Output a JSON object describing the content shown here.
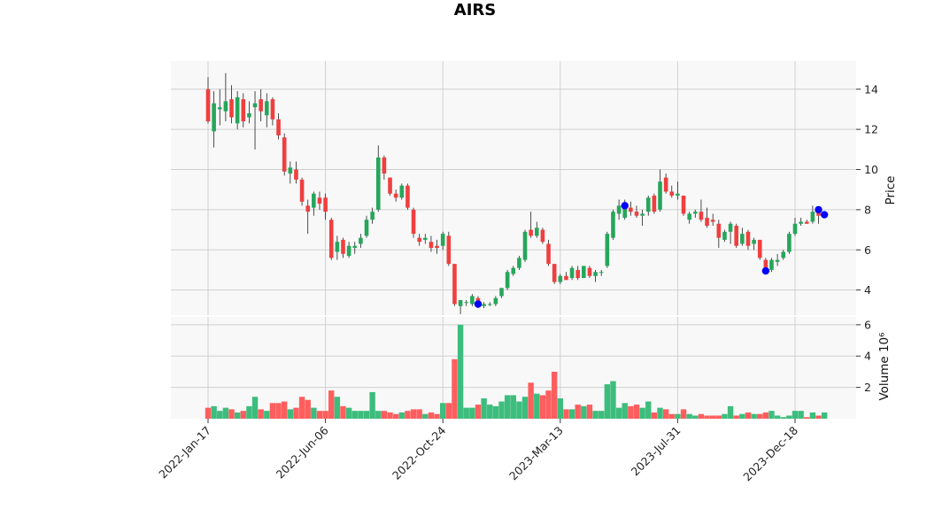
{
  "chart_data": {
    "type": "candlestick",
    "title": "AIRS",
    "colors": {
      "up": "#26a65b",
      "down": "#ef3f3f",
      "up_volume": "#3dbd7d",
      "down_volume": "#ff5e5e",
      "marker": "#0000ff",
      "panel_bg": "#f8f8f8",
      "grid": "#d0d0d0"
    },
    "x_tick_labels": [
      "2022-Jan-17",
      "2022-Jun-06",
      "2022-Oct-24",
      "2023-Mar-13",
      "2023-Jul-31",
      "2023-Dec-18"
    ],
    "x_tick_indices": [
      0,
      20,
      40,
      60,
      80,
      100
    ],
    "price_panel": {
      "ylabel": "Price",
      "ylim": [
        2.75,
        15.4
      ],
      "yticks": [
        4,
        6,
        8,
        10,
        12,
        14
      ],
      "grid": true,
      "candles": [
        [
          14.0,
          14.6,
          12.3,
          12.4
        ],
        [
          11.9,
          13.9,
          11.1,
          13.3
        ],
        [
          13.0,
          14.0,
          12.2,
          13.1
        ],
        [
          12.9,
          14.8,
          12.4,
          13.4
        ],
        [
          13.5,
          14.2,
          12.3,
          12.6
        ],
        [
          12.3,
          13.9,
          12.0,
          13.6
        ],
        [
          13.5,
          13.8,
          12.1,
          12.4
        ],
        [
          12.6,
          13.4,
          12.3,
          12.8
        ],
        [
          13.1,
          13.9,
          11.0,
          13.3
        ],
        [
          13.5,
          14.0,
          12.4,
          12.9
        ],
        [
          12.7,
          13.8,
          12.1,
          13.4
        ],
        [
          13.5,
          13.6,
          12.2,
          12.5
        ],
        [
          12.5,
          12.8,
          11.5,
          11.7
        ],
        [
          11.6,
          11.8,
          9.7,
          9.9
        ],
        [
          9.8,
          10.4,
          9.3,
          10.1
        ],
        [
          10.0,
          10.4,
          9.3,
          9.5
        ],
        [
          9.5,
          9.6,
          8.2,
          8.4
        ],
        [
          8.2,
          8.5,
          6.8,
          7.9
        ],
        [
          8.1,
          8.9,
          7.7,
          8.8
        ],
        [
          8.6,
          8.9,
          8.0,
          8.3
        ],
        [
          8.6,
          8.8,
          7.5,
          7.9
        ],
        [
          7.5,
          7.6,
          5.5,
          5.6
        ],
        [
          5.9,
          6.7,
          5.5,
          6.4
        ],
        [
          6.5,
          6.6,
          5.6,
          5.8
        ],
        [
          5.7,
          6.4,
          5.6,
          6.2
        ],
        [
          6.1,
          6.4,
          5.8,
          6.2
        ],
        [
          6.3,
          6.8,
          6.1,
          6.6
        ],
        [
          6.7,
          7.7,
          6.6,
          7.5
        ],
        [
          7.5,
          8.1,
          7.3,
          7.9
        ],
        [
          8.0,
          11.2,
          7.9,
          10.6
        ],
        [
          10.6,
          10.7,
          9.5,
          9.8
        ],
        [
          9.6,
          9.6,
          8.7,
          8.8
        ],
        [
          8.8,
          9.0,
          8.4,
          8.6
        ],
        [
          8.6,
          9.3,
          8.5,
          9.2
        ],
        [
          9.2,
          9.3,
          8.0,
          8.1
        ],
        [
          8.0,
          8.1,
          6.6,
          6.8
        ],
        [
          6.6,
          6.8,
          6.2,
          6.4
        ],
        [
          6.5,
          6.8,
          6.3,
          6.6
        ],
        [
          6.4,
          6.7,
          5.9,
          6.1
        ],
        [
          6.2,
          6.5,
          5.8,
          6.1
        ],
        [
          6.2,
          6.9,
          6.0,
          6.8
        ],
        [
          6.7,
          6.9,
          5.2,
          5.3
        ],
        [
          5.3,
          5.3,
          3.2,
          3.3
        ],
        [
          3.2,
          3.5,
          2.8,
          3.5
        ],
        [
          3.4,
          3.5,
          3.2,
          3.4
        ],
        [
          3.3,
          3.8,
          3.2,
          3.7
        ],
        [
          3.6,
          3.7,
          3.1,
          3.2
        ],
        [
          3.2,
          3.4,
          3.1,
          3.3
        ],
        [
          3.3,
          3.4,
          3.2,
          3.3
        ],
        [
          3.3,
          3.7,
          3.2,
          3.6
        ],
        [
          3.7,
          4.1,
          3.6,
          4.1
        ],
        [
          4.1,
          5.0,
          4.0,
          4.9
        ],
        [
          4.8,
          5.2,
          4.7,
          5.1
        ],
        [
          5.1,
          5.7,
          5.0,
          5.6
        ],
        [
          5.5,
          7.0,
          5.4,
          6.9
        ],
        [
          7.0,
          7.9,
          6.6,
          6.7
        ],
        [
          6.7,
          7.4,
          6.6,
          7.1
        ],
        [
          7.0,
          7.1,
          6.3,
          6.4
        ],
        [
          6.3,
          6.5,
          5.2,
          5.3
        ],
        [
          5.3,
          5.3,
          4.3,
          4.4
        ],
        [
          4.4,
          4.8,
          4.3,
          4.7
        ],
        [
          4.7,
          4.9,
          4.5,
          4.5
        ],
        [
          4.6,
          5.2,
          4.5,
          5.1
        ],
        [
          5.0,
          5.2,
          4.5,
          4.6
        ],
        [
          4.6,
          5.2,
          4.6,
          5.2
        ],
        [
          5.1,
          5.2,
          4.6,
          4.7
        ],
        [
          4.7,
          5.0,
          4.4,
          4.9
        ],
        [
          4.9,
          5.0,
          4.7,
          4.9
        ],
        [
          5.2,
          6.9,
          5.1,
          6.8
        ],
        [
          6.6,
          8.0,
          6.5,
          7.9
        ],
        [
          7.8,
          8.5,
          7.5,
          8.2
        ],
        [
          7.6,
          8.5,
          7.5,
          8.2
        ],
        [
          8.1,
          8.4,
          7.7,
          7.9
        ],
        [
          7.9,
          8.2,
          7.6,
          7.7
        ],
        [
          7.7,
          8.0,
          7.2,
          7.8
        ],
        [
          7.9,
          8.7,
          7.7,
          8.6
        ],
        [
          8.7,
          8.8,
          7.8,
          7.9
        ],
        [
          8.0,
          10.0,
          7.9,
          9.4
        ],
        [
          9.6,
          9.8,
          8.8,
          8.9
        ],
        [
          8.9,
          9.2,
          8.6,
          8.7
        ],
        [
          8.7,
          9.4,
          8.5,
          8.8
        ],
        [
          8.7,
          8.7,
          7.7,
          7.8
        ],
        [
          7.5,
          7.9,
          7.3,
          7.8
        ],
        [
          7.8,
          8.0,
          7.6,
          7.9
        ],
        [
          7.9,
          8.5,
          7.4,
          7.5
        ],
        [
          7.6,
          8.1,
          7.1,
          7.2
        ],
        [
          7.5,
          7.8,
          7.2,
          7.4
        ],
        [
          7.3,
          7.5,
          6.1,
          6.6
        ],
        [
          6.5,
          7.0,
          6.4,
          6.9
        ],
        [
          6.9,
          7.4,
          6.3,
          7.3
        ],
        [
          7.2,
          7.3,
          6.1,
          6.2
        ],
        [
          6.3,
          7.1,
          6.2,
          6.8
        ],
        [
          6.9,
          7.0,
          6.0,
          6.2
        ],
        [
          6.3,
          6.6,
          6.0,
          6.5
        ],
        [
          6.5,
          6.5,
          5.5,
          5.6
        ],
        [
          5.5,
          5.6,
          5.0,
          5.1
        ],
        [
          5.0,
          5.6,
          4.9,
          5.5
        ],
        [
          5.4,
          5.8,
          5.2,
          5.5
        ],
        [
          5.6,
          6.0,
          5.5,
          5.9
        ],
        [
          5.9,
          6.9,
          5.8,
          6.8
        ],
        [
          6.8,
          7.6,
          6.7,
          7.3
        ],
        [
          7.3,
          7.6,
          7.2,
          7.4
        ],
        [
          7.4,
          7.5,
          7.3,
          7.3
        ],
        [
          7.4,
          8.2,
          7.3,
          7.9
        ],
        [
          8.0,
          8.1,
          7.3,
          7.7
        ]
      ],
      "markers": [
        [
          71,
          8.2
        ],
        [
          46,
          3.3
        ],
        [
          95,
          4.95
        ],
        [
          104,
          8.0
        ],
        [
          105,
          7.75
        ]
      ]
    },
    "volume_panel": {
      "ylabel": "Volume  10⁶",
      "ylim": [
        0,
        6.5
      ],
      "yticks": [
        2,
        4,
        6
      ],
      "volumes": [
        0.7,
        0.8,
        0.5,
        0.7,
        0.6,
        0.4,
        0.5,
        0.8,
        1.4,
        0.6,
        0.5,
        1.0,
        1.0,
        1.1,
        0.6,
        0.7,
        1.4,
        1.2,
        0.7,
        0.5,
        0.5,
        1.8,
        1.4,
        0.8,
        0.7,
        0.5,
        0.5,
        0.5,
        1.7,
        0.5,
        0.5,
        0.4,
        0.3,
        0.4,
        0.5,
        0.6,
        0.6,
        0.3,
        0.4,
        0.3,
        1.0,
        1.0,
        3.8,
        6.0,
        0.7,
        0.7,
        0.9,
        1.3,
        0.9,
        0.8,
        1.1,
        1.5,
        1.5,
        1.1,
        1.4,
        2.3,
        1.6,
        1.5,
        1.8,
        3.0,
        1.3,
        0.6,
        0.6,
        0.9,
        0.8,
        0.9,
        0.5,
        0.5,
        2.2,
        2.4,
        0.7,
        1.0,
        0.8,
        0.9,
        0.7,
        1.1,
        0.4,
        0.7,
        0.6,
        0.3,
        0.3,
        0.6,
        0.3,
        0.2,
        0.3,
        0.2,
        0.2,
        0.2,
        0.3,
        0.8,
        0.2,
        0.3,
        0.4,
        0.3,
        0.3,
        0.4,
        0.5,
        0.2,
        0.1,
        0.2,
        0.5,
        0.5,
        0.1,
        0.4,
        0.2,
        0.4
      ]
    }
  }
}
